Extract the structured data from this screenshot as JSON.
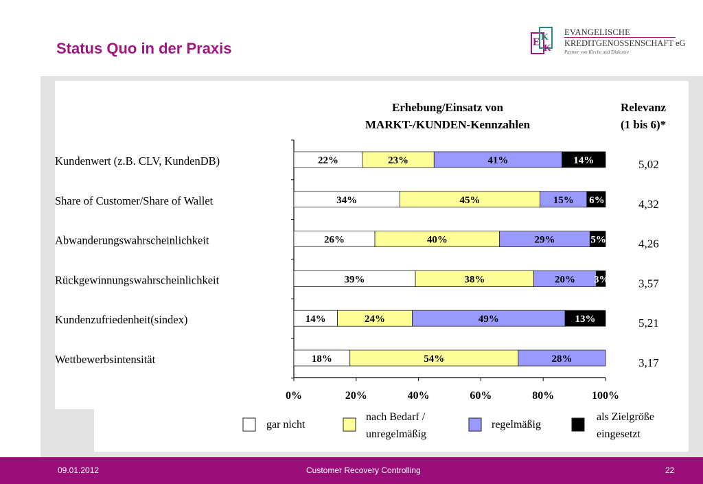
{
  "slide": {
    "title": "Status Quo in der Praxis"
  },
  "logo": {
    "line1": "EVANGELISCHE",
    "line2": "KREDITGENOSSENSCHAFT eG",
    "tagline": "Partner von Kirche und Diakonie",
    "mark_letters": "EKK",
    "colors": {
      "accent": "#a0157f",
      "secondary": "#2a8a7a"
    }
  },
  "chart_data": {
    "type": "bar",
    "orientation": "horizontal",
    "stacked": true,
    "title": "Erhebung/Einsatz von",
    "subtitle": "MARKT-/KUNDEN-Kennzahlen",
    "extra_column_header": [
      "Relevanz",
      "(1 bis 6)*"
    ],
    "categories": [
      "Kundenwert (z.B. CLV, KundenDB)",
      "Share of Customer/Share of Wallet",
      "Abwanderungswahrscheinlichkeit",
      "Rückgewinnungswahrscheinlichkeit",
      "Kundenzufriedenheit(sindex)",
      "Wettbewerbsintensität"
    ],
    "series": [
      {
        "name": "gar nicht",
        "color": "#ffffff",
        "values": [
          22,
          34,
          26,
          39,
          14,
          18
        ]
      },
      {
        "name": "nach Bedarf / unregelmäßig",
        "color": "#ffff99",
        "values": [
          23,
          45,
          40,
          38,
          24,
          54
        ]
      },
      {
        "name": "regelmäßig",
        "color": "#9999ff",
        "values": [
          41,
          15,
          29,
          20,
          49,
          28
        ]
      },
      {
        "name": "als Zielgröße eingesetzt",
        "color": "#000000",
        "values": [
          14,
          6,
          5,
          3,
          13,
          0
        ]
      }
    ],
    "relevanz": [
      "5,02",
      "4,32",
      "4,26",
      "3,57",
      "5,21",
      "3,17"
    ],
    "xlim": [
      0,
      100
    ],
    "xticks": [
      "0%",
      "20%",
      "40%",
      "60%",
      "80%",
      "100%"
    ],
    "legend_placement": "bottom",
    "legend_labels": [
      [
        "gar nicht"
      ],
      [
        "nach Bedarf /",
        "unregelmäßig"
      ],
      [
        "regelmäßig"
      ],
      [
        "als Zielgröße",
        "eingesetzt"
      ]
    ]
  },
  "footer": {
    "date": "09.01.2012",
    "center": "Customer Recovery Controlling",
    "page": "22",
    "color": "#9b0d78"
  }
}
